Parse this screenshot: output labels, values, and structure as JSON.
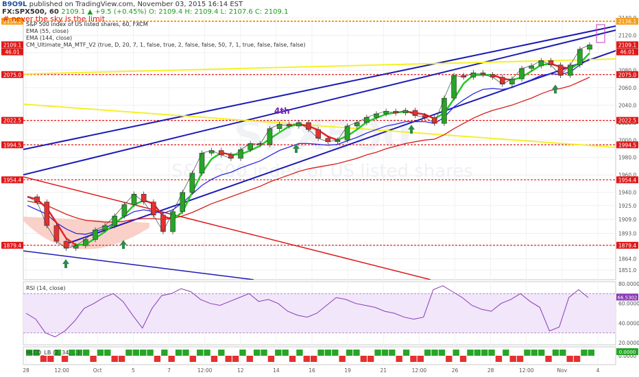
{
  "header": {
    "author": "B9O9L",
    "published_text": "published on TradingView.com, November 03, 2015 16:14 EST",
    "symbol": "FX:SPX500, 60",
    "ohlc": "2109.1 ▲ +9.5 (+0.45%) O: 2109.4 H: 2109.4 L: 2107.6 C: 2109.1"
  },
  "chart_data": {
    "type": "line",
    "title": "# never the sky is the limit",
    "subtitle": "S&P 500 index of US listed shares, 60, FXCM",
    "watermark": "S&P 500 index of US listed shares",
    "watermark_big": "SPX500",
    "indicators": [
      "EMA (55, close)",
      "EMA (144, close)",
      "CM_Ultimate_MA_MTF_V2 (true, D, 20, 7, 1, false, true, 2, false, false, 50, 7, 1, true, false, false, false)"
    ],
    "annotation": "4th",
    "ylim": [
      1840,
      2140
    ],
    "y_ticks": [
      1851.0,
      1864.0,
      1879.0,
      1893.0,
      1909.0,
      1925.0,
      1940.0,
      1960.0,
      1980.0,
      2000.0,
      2020.0,
      2040.0,
      2060.0,
      2080.0,
      2100.0,
      2120.0,
      2140.0
    ],
    "level_labels": [
      "2136.1",
      "2109.1",
      "46.01",
      "2075.0",
      "2022.5",
      "1994.5",
      "1954.4",
      "1879.4"
    ],
    "levels": [
      2136.1,
      2075.0,
      2022.5,
      1994.5,
      1954.4,
      1879.4
    ],
    "x_tick_labels": [
      "28",
      "12:00",
      "Oct",
      "5",
      "7",
      "12:00",
      "12",
      "14",
      "16",
      "19",
      "21",
      "12:00",
      "26",
      "28",
      "12:00",
      "Nov",
      "4"
    ],
    "price": [
      1935,
      1929,
      1902,
      1884,
      1876,
      1879,
      1886,
      1897,
      1902,
      1913,
      1926,
      1938,
      1929,
      1914,
      1895,
      1918,
      1940,
      1962,
      1985,
      1988,
      1983,
      1979,
      1989,
      1996,
      1995,
      2013,
      2018,
      2016,
      2020,
      2012,
      2002,
      1998,
      2000,
      2016,
      2020,
      2026,
      2030,
      2033,
      2031,
      2034,
      2028,
      2026,
      2019,
      2048,
      2074,
      2072,
      2077,
      2075,
      2072,
      2064,
      2070,
      2082,
      2085,
      2091,
      2086,
      2074,
      2086,
      2104,
      2109
    ],
    "ema55": [
      1925,
      1920,
      1915,
      1905,
      1898,
      1893,
      1892,
      1895,
      1899,
      1905,
      1912,
      1918,
      1920,
      1918,
      1916,
      1920,
      1928,
      1938,
      1948,
      1955,
      1960,
      1963,
      1968,
      1972,
      1976,
      1982,
      1988,
      1992,
      1996,
      1996,
      1995,
      1994,
      1995,
      1999,
      2003,
      2008,
      2012,
      2016,
      2018,
      2021,
      2021,
      2021,
      2019,
      2026,
      2038,
      2046,
      2053,
      2058,
      2059,
      2058,
      2060,
      2065,
      2069,
      2074,
      2076,
      2075,
      2078,
      2086,
      2093
    ],
    "ema144": [
      1930,
      1928,
      1925,
      1920,
      1915,
      1911,
      1908,
      1907,
      1906,
      1906,
      1907,
      1909,
      1910,
      1910,
      1909,
      1910,
      1913,
      1917,
      1922,
      1927,
      1931,
      1935,
      1939,
      1943,
      1947,
      1952,
      1956,
      1960,
      1964,
      1967,
      1969,
      1971,
      1973,
      1976,
      1979,
      1983,
      1986,
      1990,
      1993,
      1996,
      1998,
      2000,
      2001,
      2006,
      2013,
      2019,
      2025,
      2030,
      2034,
      2037,
      2040,
      2044,
      2048,
      2053,
      2057,
      2059,
      2062,
      2067,
      2072
    ],
    "rsi": {
      "label": "RSI (14, close)",
      "ylim": [
        20,
        80
      ],
      "ticks": [
        20.0,
        40.0,
        60.0,
        80.0
      ],
      "tick_labels": [
        "20.0000",
        "40.0000",
        "60.0000",
        "80.0000"
      ],
      "last_label": "66.5302",
      "band": [
        30,
        70
      ],
      "values": [
        50,
        44,
        30,
        26,
        32,
        42,
        55,
        60,
        66,
        70,
        62,
        48,
        35,
        55,
        68,
        70,
        75,
        72,
        64,
        60,
        58,
        62,
        66,
        70,
        62,
        64,
        60,
        52,
        48,
        46,
        50,
        58,
        66,
        64,
        60,
        58,
        56,
        52,
        50,
        46,
        44,
        46,
        74,
        78,
        72,
        66,
        58,
        54,
        52,
        60,
        64,
        70,
        62,
        56,
        32,
        36,
        66,
        74,
        66
      ]
    },
    "histo": {
      "label": "HLCO_LB (2, 34, ...)",
      "tick_label": "0.0000",
      "last_label": "0.0000",
      "signs": [
        1,
        1,
        -1,
        -1,
        1,
        -1,
        1,
        1,
        1,
        -1,
        1,
        1,
        -1,
        -1,
        1,
        1,
        1,
        1,
        -1,
        1,
        -1,
        1,
        1,
        -1,
        1,
        1,
        -1,
        1,
        -1,
        -1,
        1,
        -1,
        1,
        1,
        -1,
        1,
        1,
        -1,
        1,
        -1,
        -1,
        1,
        1,
        1,
        -1,
        1,
        1,
        -1,
        -1,
        1,
        1,
        1,
        -1,
        1,
        -1,
        -1,
        1,
        1,
        1,
        -1,
        1,
        -1,
        1,
        1,
        1,
        1,
        -1,
        1,
        -1,
        -1,
        1,
        1,
        1,
        -1,
        1,
        1,
        -1,
        -1,
        1,
        1
      ]
    }
  },
  "colors": {
    "up": "#26a526",
    "down": "#e53030",
    "trend_blue": "#1a1ab4",
    "trend_red": "#e01818",
    "trend_yellow": "#f5f028",
    "ema55": "#2a2ae0",
    "ema144": "#d81c1c",
    "level": "#e01818",
    "level_orange": "#f59d1a",
    "rsi_line": "#8a3ab4",
    "rsi_band": "#f1e6fa"
  }
}
